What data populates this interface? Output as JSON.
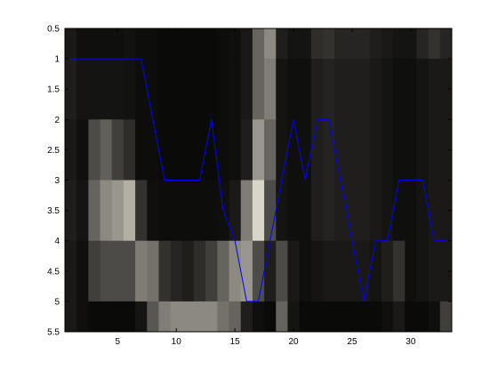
{
  "chart_data": {
    "type": "heatmap",
    "overlay_type": "line",
    "title": "",
    "xlabel": "",
    "ylabel": "",
    "xlim": [
      0.5,
      33.5
    ],
    "ylim": [
      0.5,
      5.5
    ],
    "y_reversed": true,
    "grid": false,
    "x_ticks": [
      5,
      10,
      15,
      20,
      25,
      30
    ],
    "y_ticks": [
      0.5,
      1,
      1.5,
      2,
      2.5,
      3,
      3.5,
      4,
      4.5,
      5,
      5.5
    ],
    "y_tick_labels": [
      "0.5",
      "1",
      "1.5",
      "2",
      "2.5",
      "3",
      "3.5",
      "4",
      "4.5",
      "5",
      "5.5"
    ],
    "x_tick_labels": [
      "5",
      "10",
      "15",
      "20",
      "25",
      "30"
    ],
    "line_color": "#0000ff",
    "heatmap_colormap": "gray",
    "heatmap": [
      [
        0.1,
        0.06,
        0.06,
        0.06,
        0.06,
        0.07,
        0.05,
        0.05,
        0.04,
        0.04,
        0.04,
        0.04,
        0.04,
        0.05,
        0.06,
        0.1,
        0.4,
        0.55,
        0.12,
        0.08,
        0.08,
        0.18,
        0.2,
        0.15,
        0.15,
        0.15,
        0.12,
        0.1,
        0.08,
        0.08,
        0.15,
        0.2,
        0.15
      ],
      [
        0.12,
        0.08,
        0.08,
        0.08,
        0.08,
        0.07,
        0.05,
        0.05,
        0.04,
        0.04,
        0.04,
        0.04,
        0.04,
        0.05,
        0.06,
        0.1,
        0.4,
        0.5,
        0.08,
        0.06,
        0.06,
        0.12,
        0.14,
        0.12,
        0.12,
        0.12,
        0.1,
        0.08,
        0.06,
        0.06,
        0.08,
        0.1,
        0.1
      ],
      [
        0.1,
        0.06,
        0.3,
        0.38,
        0.25,
        0.18,
        0.05,
        0.05,
        0.04,
        0.04,
        0.04,
        0.04,
        0.04,
        0.05,
        0.06,
        0.12,
        0.6,
        0.4,
        0.08,
        0.06,
        0.06,
        0.12,
        0.14,
        0.12,
        0.12,
        0.12,
        0.1,
        0.08,
        0.06,
        0.06,
        0.08,
        0.1,
        0.1
      ],
      [
        0.12,
        0.08,
        0.4,
        0.55,
        0.6,
        0.7,
        0.2,
        0.06,
        0.05,
        0.05,
        0.05,
        0.05,
        0.05,
        0.06,
        0.1,
        0.5,
        0.85,
        0.3,
        0.08,
        0.06,
        0.06,
        0.12,
        0.14,
        0.12,
        0.12,
        0.12,
        0.1,
        0.08,
        0.06,
        0.06,
        0.08,
        0.1,
        0.1
      ],
      [
        0.1,
        0.06,
        0.25,
        0.3,
        0.3,
        0.3,
        0.5,
        0.45,
        0.2,
        0.15,
        0.12,
        0.18,
        0.25,
        0.4,
        0.55,
        0.6,
        0.3,
        0.12,
        0.3,
        0.1,
        0.06,
        0.08,
        0.1,
        0.1,
        0.1,
        0.1,
        0.08,
        0.12,
        0.2,
        0.06,
        0.08,
        0.1,
        0.1
      ],
      [
        0.1,
        0.06,
        0.04,
        0.04,
        0.04,
        0.04,
        0.08,
        0.35,
        0.5,
        0.55,
        0.55,
        0.55,
        0.55,
        0.45,
        0.4,
        0.12,
        0.06,
        0.04,
        0.4,
        0.08,
        0.04,
        0.04,
        0.04,
        0.04,
        0.04,
        0.04,
        0.04,
        0.06,
        0.1,
        0.04,
        0.04,
        0.06,
        0.25
      ]
    ],
    "heatmap_rows_y": [
      0.5,
      1.5,
      2.5,
      3.5,
      4.5,
      5.5
    ],
    "series": [
      {
        "x": [
          1,
          2,
          3,
          4,
          5,
          6,
          7,
          8,
          9,
          10,
          11,
          12,
          13,
          14,
          15,
          16,
          17,
          18,
          19,
          20,
          21,
          22,
          23,
          24,
          25,
          26,
          27,
          28,
          29,
          30,
          31,
          32,
          33
        ],
        "values": [
          1,
          1,
          1,
          1,
          1,
          1,
          1,
          2,
          3,
          3,
          3,
          3,
          2,
          3.5,
          4,
          5,
          5,
          4,
          3,
          2,
          3,
          2,
          2,
          3,
          4,
          5,
          4,
          4,
          3,
          3,
          3,
          4,
          4
        ]
      }
    ]
  }
}
